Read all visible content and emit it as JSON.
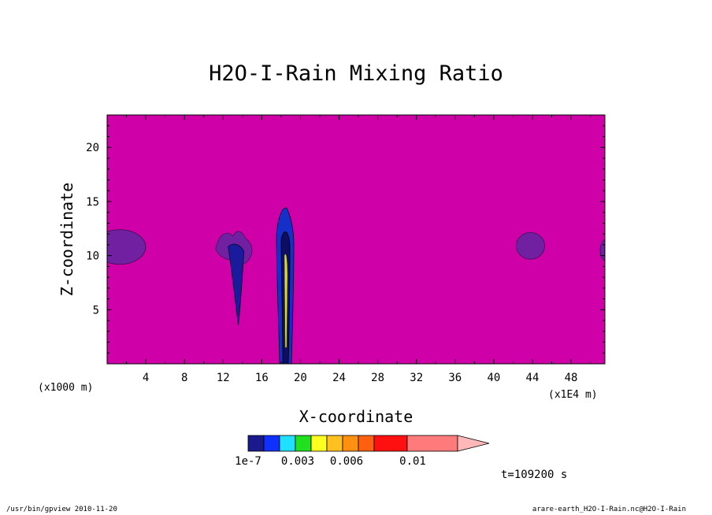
{
  "chart_data": {
    "type": "heatmap",
    "title": "H2O-I-Rain Mixing Ratio",
    "xlabel": "X-coordinate",
    "ylabel": "Z-coordinate",
    "x_unit": "(x1E4 m)",
    "y_unit": "(x1000 m)",
    "xlim": [
      0,
      51.5
    ],
    "ylim": [
      0,
      23
    ],
    "x_ticks": [
      4,
      8,
      12,
      16,
      20,
      24,
      28,
      32,
      36,
      40,
      44,
      48
    ],
    "y_ticks": [
      5,
      10,
      15,
      20
    ],
    "background_level": "below 1e-7",
    "features": [
      {
        "label": "cell-left-edge",
        "x": 1.3,
        "z": 10.8,
        "level": "1e-7"
      },
      {
        "label": "cell-13",
        "x": 13.5,
        "z": 9.5,
        "level": "1e-7 to 0.003"
      },
      {
        "label": "cell-18.5",
        "x": 18.5,
        "z": 7.0,
        "level": "up to 0.006"
      },
      {
        "label": "cell-44",
        "x": 43.8,
        "z": 10.9,
        "level": "1e-7"
      },
      {
        "label": "cell-right-edge",
        "x": 51.5,
        "z": 10.5,
        "level": "1e-7"
      }
    ],
    "colorbar": {
      "colors": [
        "#1a1a8c",
        "#1030ff",
        "#20e0ff",
        "#20e020",
        "#ffff20",
        "#ffc020",
        "#ff9010",
        "#ff6010",
        "#ff1010",
        "#ff7a7a",
        "#ffb8b8"
      ],
      "tick_labels": [
        "1e-7",
        "0.003",
        "0.006",
        "0.01"
      ]
    },
    "time_label": "t=109200 s"
  },
  "colors": {
    "background_field": "#d000a8",
    "low_contour": "#7020a0"
  },
  "footer": {
    "left": "/usr/bin/gpview  2010-11-20",
    "right": "arare-earth_H2O-I-Rain.nc@H2O-I-Rain"
  }
}
